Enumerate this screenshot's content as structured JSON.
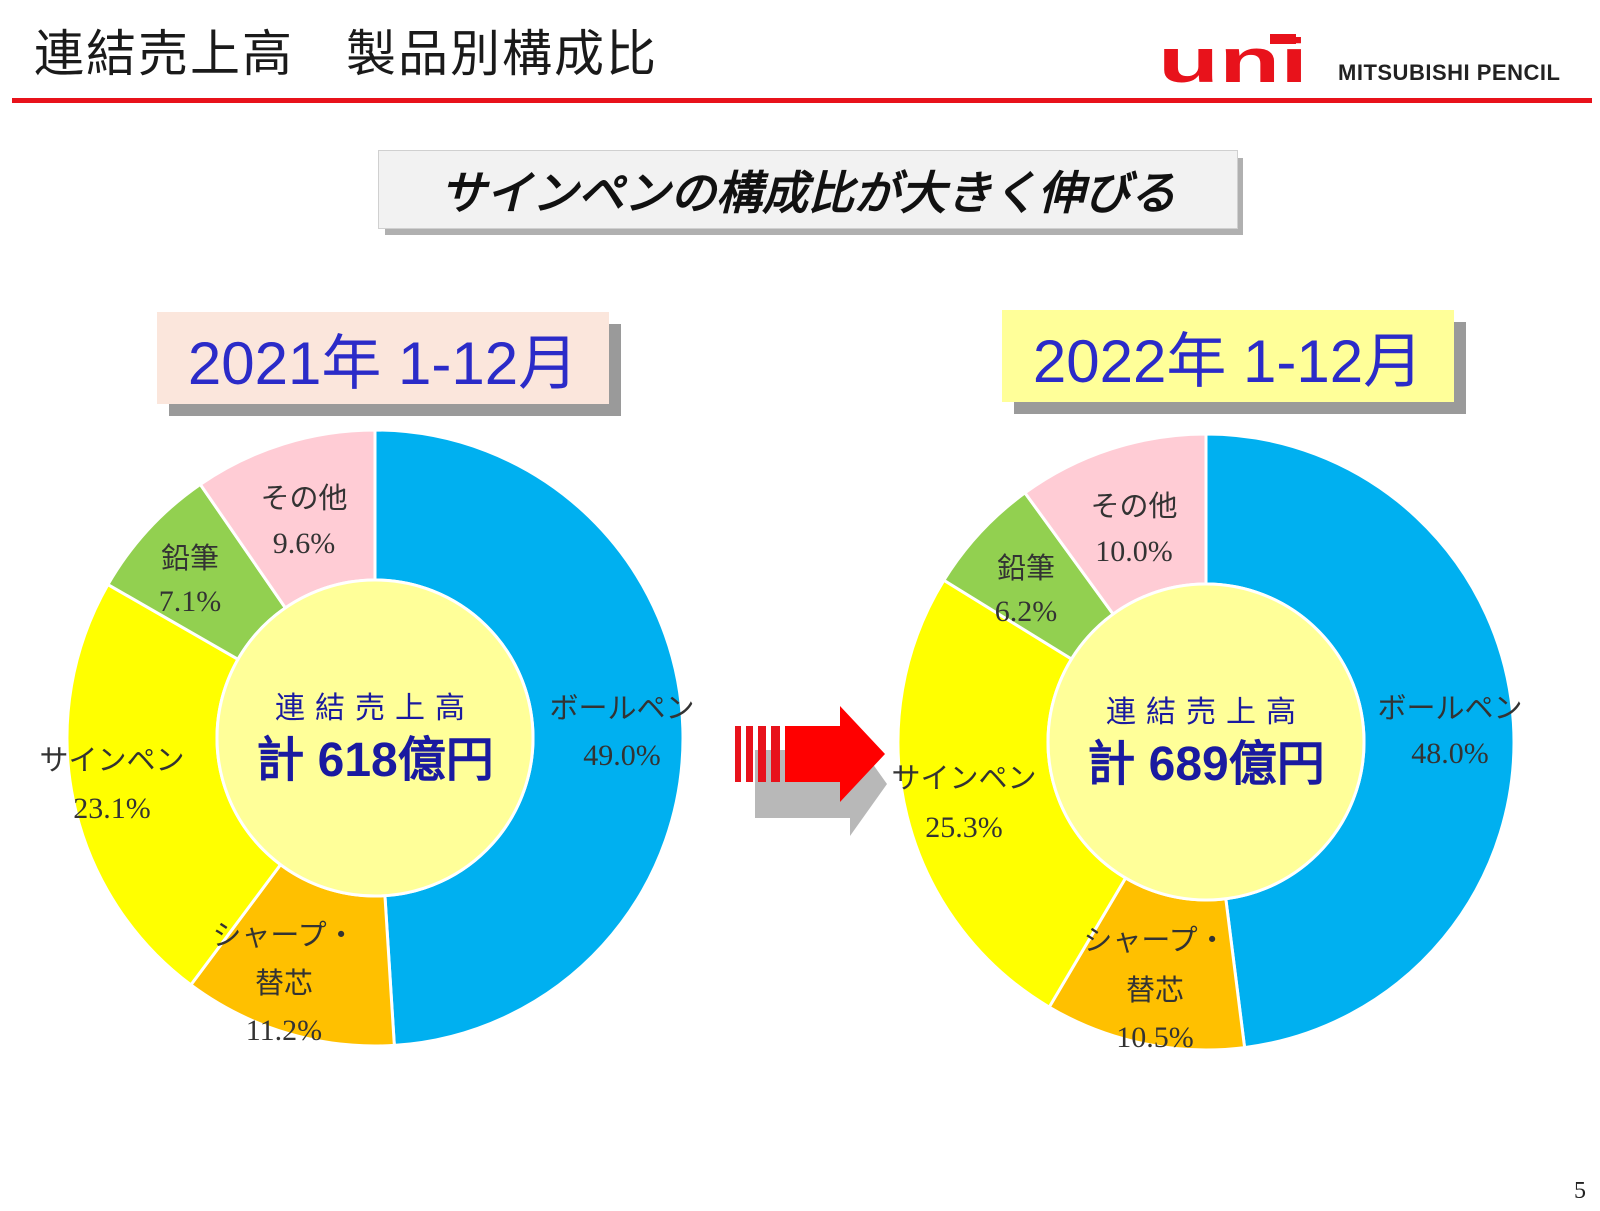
{
  "header": {
    "title": "連結売上高　製品別構成比",
    "logo_text": "uni",
    "company": "MITSUBISHI PENCIL",
    "accent_color": "#e8121b"
  },
  "headline": "サインペンの構成比が大きく伸びる",
  "page_number": "5",
  "chart_data": [
    {
      "type": "donut",
      "title": "2021年 1-12月",
      "center_label": "連結売上高",
      "center_total": "計 618億円",
      "categories": [
        "ボールペン",
        "シャープ・替芯",
        "サインペン",
        "鉛筆",
        "その他"
      ],
      "values": [
        49.0,
        11.2,
        23.1,
        7.1,
        9.6
      ],
      "value_labels": [
        "49.0%",
        "11.2%",
        "23.1%",
        "7.1%",
        "9.6%"
      ],
      "colors": [
        "#00b0f0",
        "#ffc000",
        "#ffff00",
        "#92d050",
        "#ffccd5"
      ]
    },
    {
      "type": "donut",
      "title": "2022年 1-12月",
      "center_label": "連結売上高",
      "center_total": "計 689億円",
      "categories": [
        "ボールペン",
        "シャープ・替芯",
        "サインペン",
        "鉛筆",
        "その他"
      ],
      "values": [
        48.0,
        10.5,
        25.3,
        6.2,
        10.0
      ],
      "value_labels": [
        "48.0%",
        "10.5%",
        "25.3%",
        "6.2%",
        "10.0%"
      ],
      "colors": [
        "#00b0f0",
        "#ffc000",
        "#ffff00",
        "#92d050",
        "#ffccd5"
      ]
    }
  ]
}
